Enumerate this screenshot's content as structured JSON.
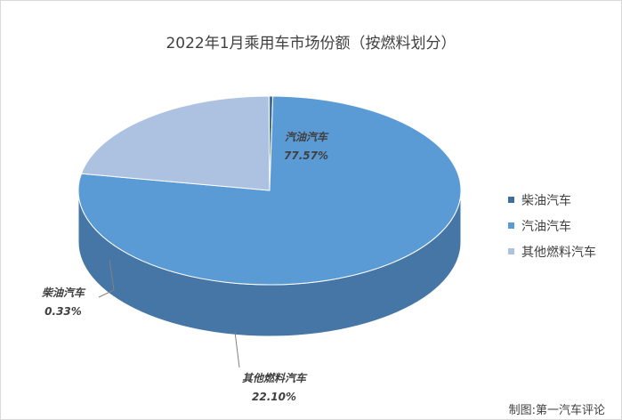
{
  "chart_data": {
    "type": "pie",
    "title": "2022年1月乘用车市场份额（按燃料划分）",
    "categories": [
      "柴油汽车",
      "汽油汽车",
      "其他燃料汽车"
    ],
    "values": [
      0.33,
      77.57,
      22.1
    ],
    "value_labels": [
      "0.33%",
      "77.57%",
      "22.10%"
    ],
    "legend_position": "right",
    "colors": [
      "#3d6e9c",
      "#5b9bd5",
      "#adc1e0"
    ],
    "side_colors": [
      "#2d5b87",
      "#4676a6",
      "#7e8fa6"
    ]
  },
  "source_note": "制图:第一汽车评论"
}
